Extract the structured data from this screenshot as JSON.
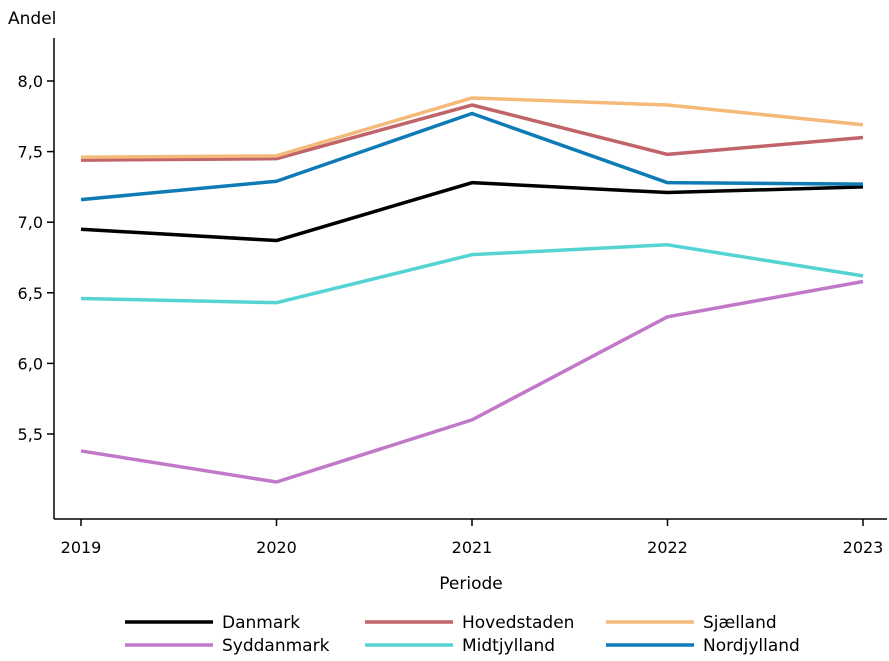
{
  "chart_data": {
    "type": "line",
    "ylabel": "Andel",
    "xlabel": "Periode",
    "x": [
      "2019",
      "2020",
      "2021",
      "2022",
      "2023"
    ],
    "ylim": [
      4.9,
      8.2
    ],
    "yticks": [
      5.5,
      6.0,
      6.5,
      7.0,
      7.5,
      8.0
    ],
    "ytick_labels": [
      "5,5",
      "6,0",
      "6,5",
      "7,0",
      "7,5",
      "8,0"
    ],
    "grid": false,
    "legend_position": "bottom",
    "series": [
      {
        "name": "Danmark",
        "color": "#000000",
        "values": [
          6.95,
          6.87,
          7.28,
          7.21,
          7.25
        ]
      },
      {
        "name": "Hovedstaden",
        "color": "#c0646a",
        "values": [
          7.44,
          7.45,
          7.83,
          7.48,
          7.6
        ]
      },
      {
        "name": "Sjælland",
        "color": "#f5b97a",
        "values": [
          7.46,
          7.47,
          7.88,
          7.83,
          7.69
        ]
      },
      {
        "name": "Syddanmark",
        "color": "#c278c8",
        "values": [
          5.38,
          5.16,
          5.6,
          6.33,
          6.58
        ]
      },
      {
        "name": "Midtjylland",
        "color": "#55d3d3",
        "values": [
          6.46,
          6.43,
          6.77,
          6.84,
          6.62
        ]
      },
      {
        "name": "Nordjylland",
        "color": "#0e7bb5",
        "values": [
          7.16,
          7.29,
          7.77,
          7.28,
          7.27
        ]
      }
    ]
  }
}
